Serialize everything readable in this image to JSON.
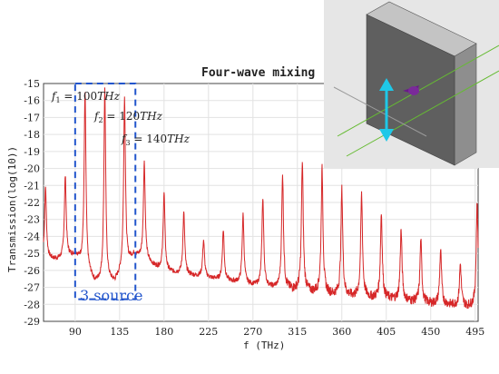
{
  "chart_data": {
    "type": "line",
    "title": "Four-wave mixing",
    "xlabel": "f (THz)",
    "ylabel": "Transmission(log(10))",
    "xlim": [
      58,
      498
    ],
    "ylim": [
      -29,
      -15
    ],
    "x_ticks": [
      90,
      135,
      180,
      225,
      270,
      315,
      360,
      405,
      450,
      495
    ],
    "y_ticks": [
      -15,
      -16,
      -17,
      -18,
      -19,
      -20,
      -21,
      -22,
      -23,
      -24,
      -25,
      -26,
      -27,
      -28,
      -29
    ],
    "grid": true,
    "line_color": "#d62728",
    "series": [
      {
        "peaks": [
          {
            "x": 60,
            "y": -21.1
          },
          {
            "x": 80,
            "y": -20.4
          },
          {
            "x": 100,
            "y": -15.5
          },
          {
            "x": 120,
            "y": -15.3
          },
          {
            "x": 140,
            "y": -15.8
          },
          {
            "x": 160,
            "y": -19.6
          },
          {
            "x": 180,
            "y": -21.4
          },
          {
            "x": 200,
            "y": -22.6
          },
          {
            "x": 220,
            "y": -24.2
          },
          {
            "x": 240,
            "y": -23.6
          },
          {
            "x": 260,
            "y": -22.7
          },
          {
            "x": 280,
            "y": -21.7
          },
          {
            "x": 300,
            "y": -20.3
          },
          {
            "x": 320,
            "y": -19.6
          },
          {
            "x": 340,
            "y": -20.0
          },
          {
            "x": 360,
            "y": -21.2
          },
          {
            "x": 380,
            "y": -21.5
          },
          {
            "x": 400,
            "y": -22.6
          },
          {
            "x": 420,
            "y": -23.6
          },
          {
            "x": 440,
            "y": -24.2
          },
          {
            "x": 460,
            "y": -24.8
          },
          {
            "x": 480,
            "y": -25.6
          },
          {
            "x": 497,
            "y": -22.0
          }
        ],
        "baseline": [
          {
            "x": 58,
            "y": -25.3
          },
          {
            "x": 75,
            "y": -25.3
          },
          {
            "x": 90,
            "y": -25.0
          },
          {
            "x": 110,
            "y": -26.6
          },
          {
            "x": 130,
            "y": -26.6
          },
          {
            "x": 150,
            "y": -25.0
          },
          {
            "x": 180,
            "y": -26.0
          },
          {
            "x": 225,
            "y": -26.4
          },
          {
            "x": 270,
            "y": -26.8
          },
          {
            "x": 315,
            "y": -27.1
          },
          {
            "x": 360,
            "y": -27.4
          },
          {
            "x": 405,
            "y": -27.6
          },
          {
            "x": 450,
            "y": -27.9
          },
          {
            "x": 498,
            "y": -28.1
          }
        ]
      }
    ],
    "annotations": {
      "f1_label": "f",
      "f1_sub": "1",
      "f1_value": " = 100",
      "f1_unit": "THz",
      "f2_label": "f",
      "f2_sub": "2",
      "f2_value": " = 120",
      "f2_unit": "THz",
      "f3_label": "f",
      "f3_sub": "3",
      "f3_value": " = 140",
      "f3_unit": "THz",
      "box_label": "3 source",
      "box_x_range": [
        90,
        151
      ],
      "box_y_range": [
        -27.7,
        -15.0
      ]
    }
  },
  "inset": {
    "description_colors": {
      "background": "#e6e6e6",
      "slab_front": "#5c5c5c",
      "slab_side": "#8a8a8a",
      "slab_top": "#b8b8b8",
      "arrow": "#1ec8e8",
      "cone": "#6a1a8a",
      "guide_lines": "#66bb33"
    }
  }
}
